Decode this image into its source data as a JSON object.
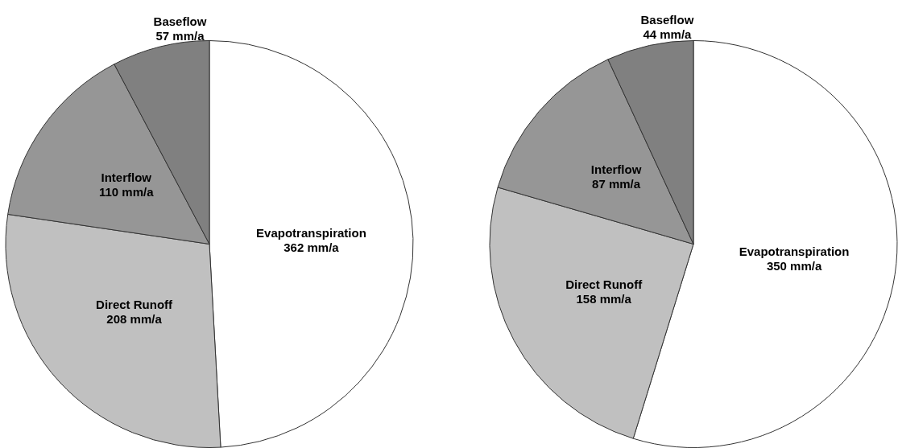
{
  "chart_data": [
    {
      "type": "pie",
      "categories": [
        "Evapotranspiration",
        "Direct Runoff",
        "Interflow",
        "Baseflow"
      ],
      "values": [
        362,
        208,
        110,
        57
      ],
      "value_labels": [
        "362 mm/a",
        "208 mm/a",
        "110 mm/a",
        "57 mm/a"
      ],
      "colors": [
        "#ffffff",
        "#c0c0c0",
        "#969696",
        "#808080"
      ],
      "legend": false
    },
    {
      "type": "pie",
      "categories": [
        "Evapotranspiration",
        "Direct Runoff",
        "Interflow",
        "Baseflow"
      ],
      "values": [
        350,
        158,
        87,
        44
      ],
      "value_labels": [
        "350 mm/a",
        "158 mm/a",
        "87 mm/a",
        "44 mm/a"
      ],
      "colors": [
        "#ffffff",
        "#c0c0c0",
        "#969696",
        "#808080"
      ],
      "legend": false
    }
  ]
}
